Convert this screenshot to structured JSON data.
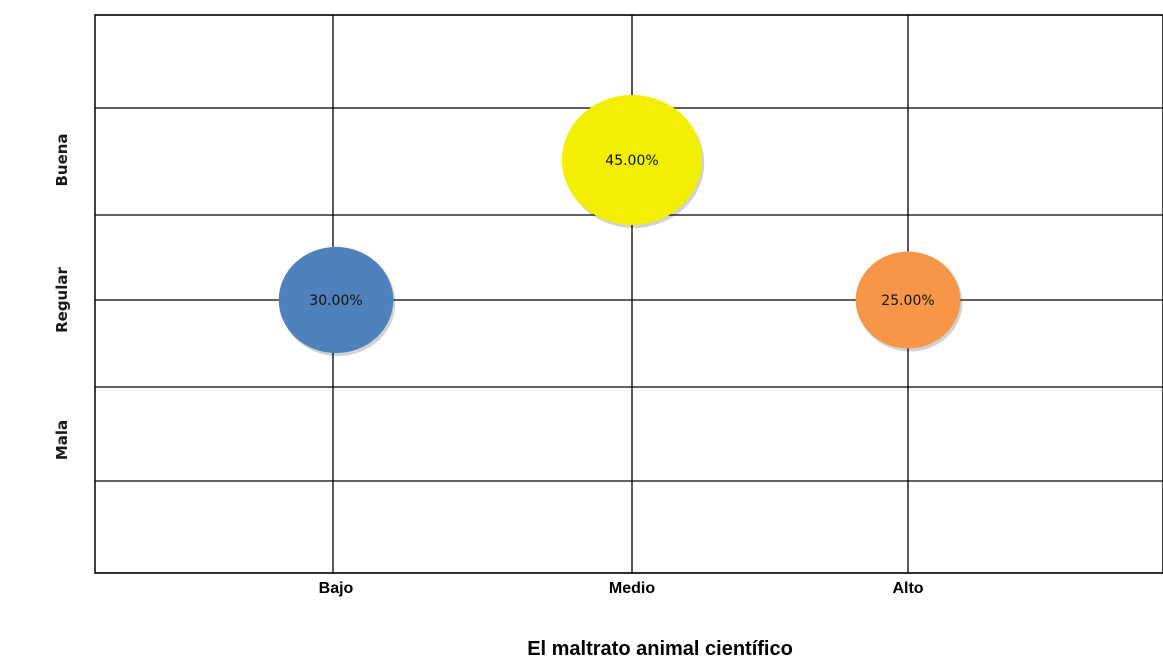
{
  "chart_data": {
    "type": "scatter",
    "subtype": "bubble",
    "xlabel": "El  maltrato animal científico",
    "ylabel": "",
    "x_categories": [
      "Bajo",
      "Medio",
      "Alto"
    ],
    "y_categories": [
      "Mala",
      "Regular",
      "Buena"
    ],
    "grid": true,
    "legend": "none",
    "points": [
      {
        "x": "Bajo",
        "y": "Regular",
        "value": 30.0,
        "label": "30.00%",
        "color": "#4f81bd"
      },
      {
        "x": "Medio",
        "y": "Buena",
        "value": 45.0,
        "label": "45.00%",
        "color": "#f2f000"
      },
      {
        "x": "Alto",
        "y": "Regular",
        "value": 25.0,
        "label": "25.00%",
        "color": "#f79646"
      }
    ]
  }
}
